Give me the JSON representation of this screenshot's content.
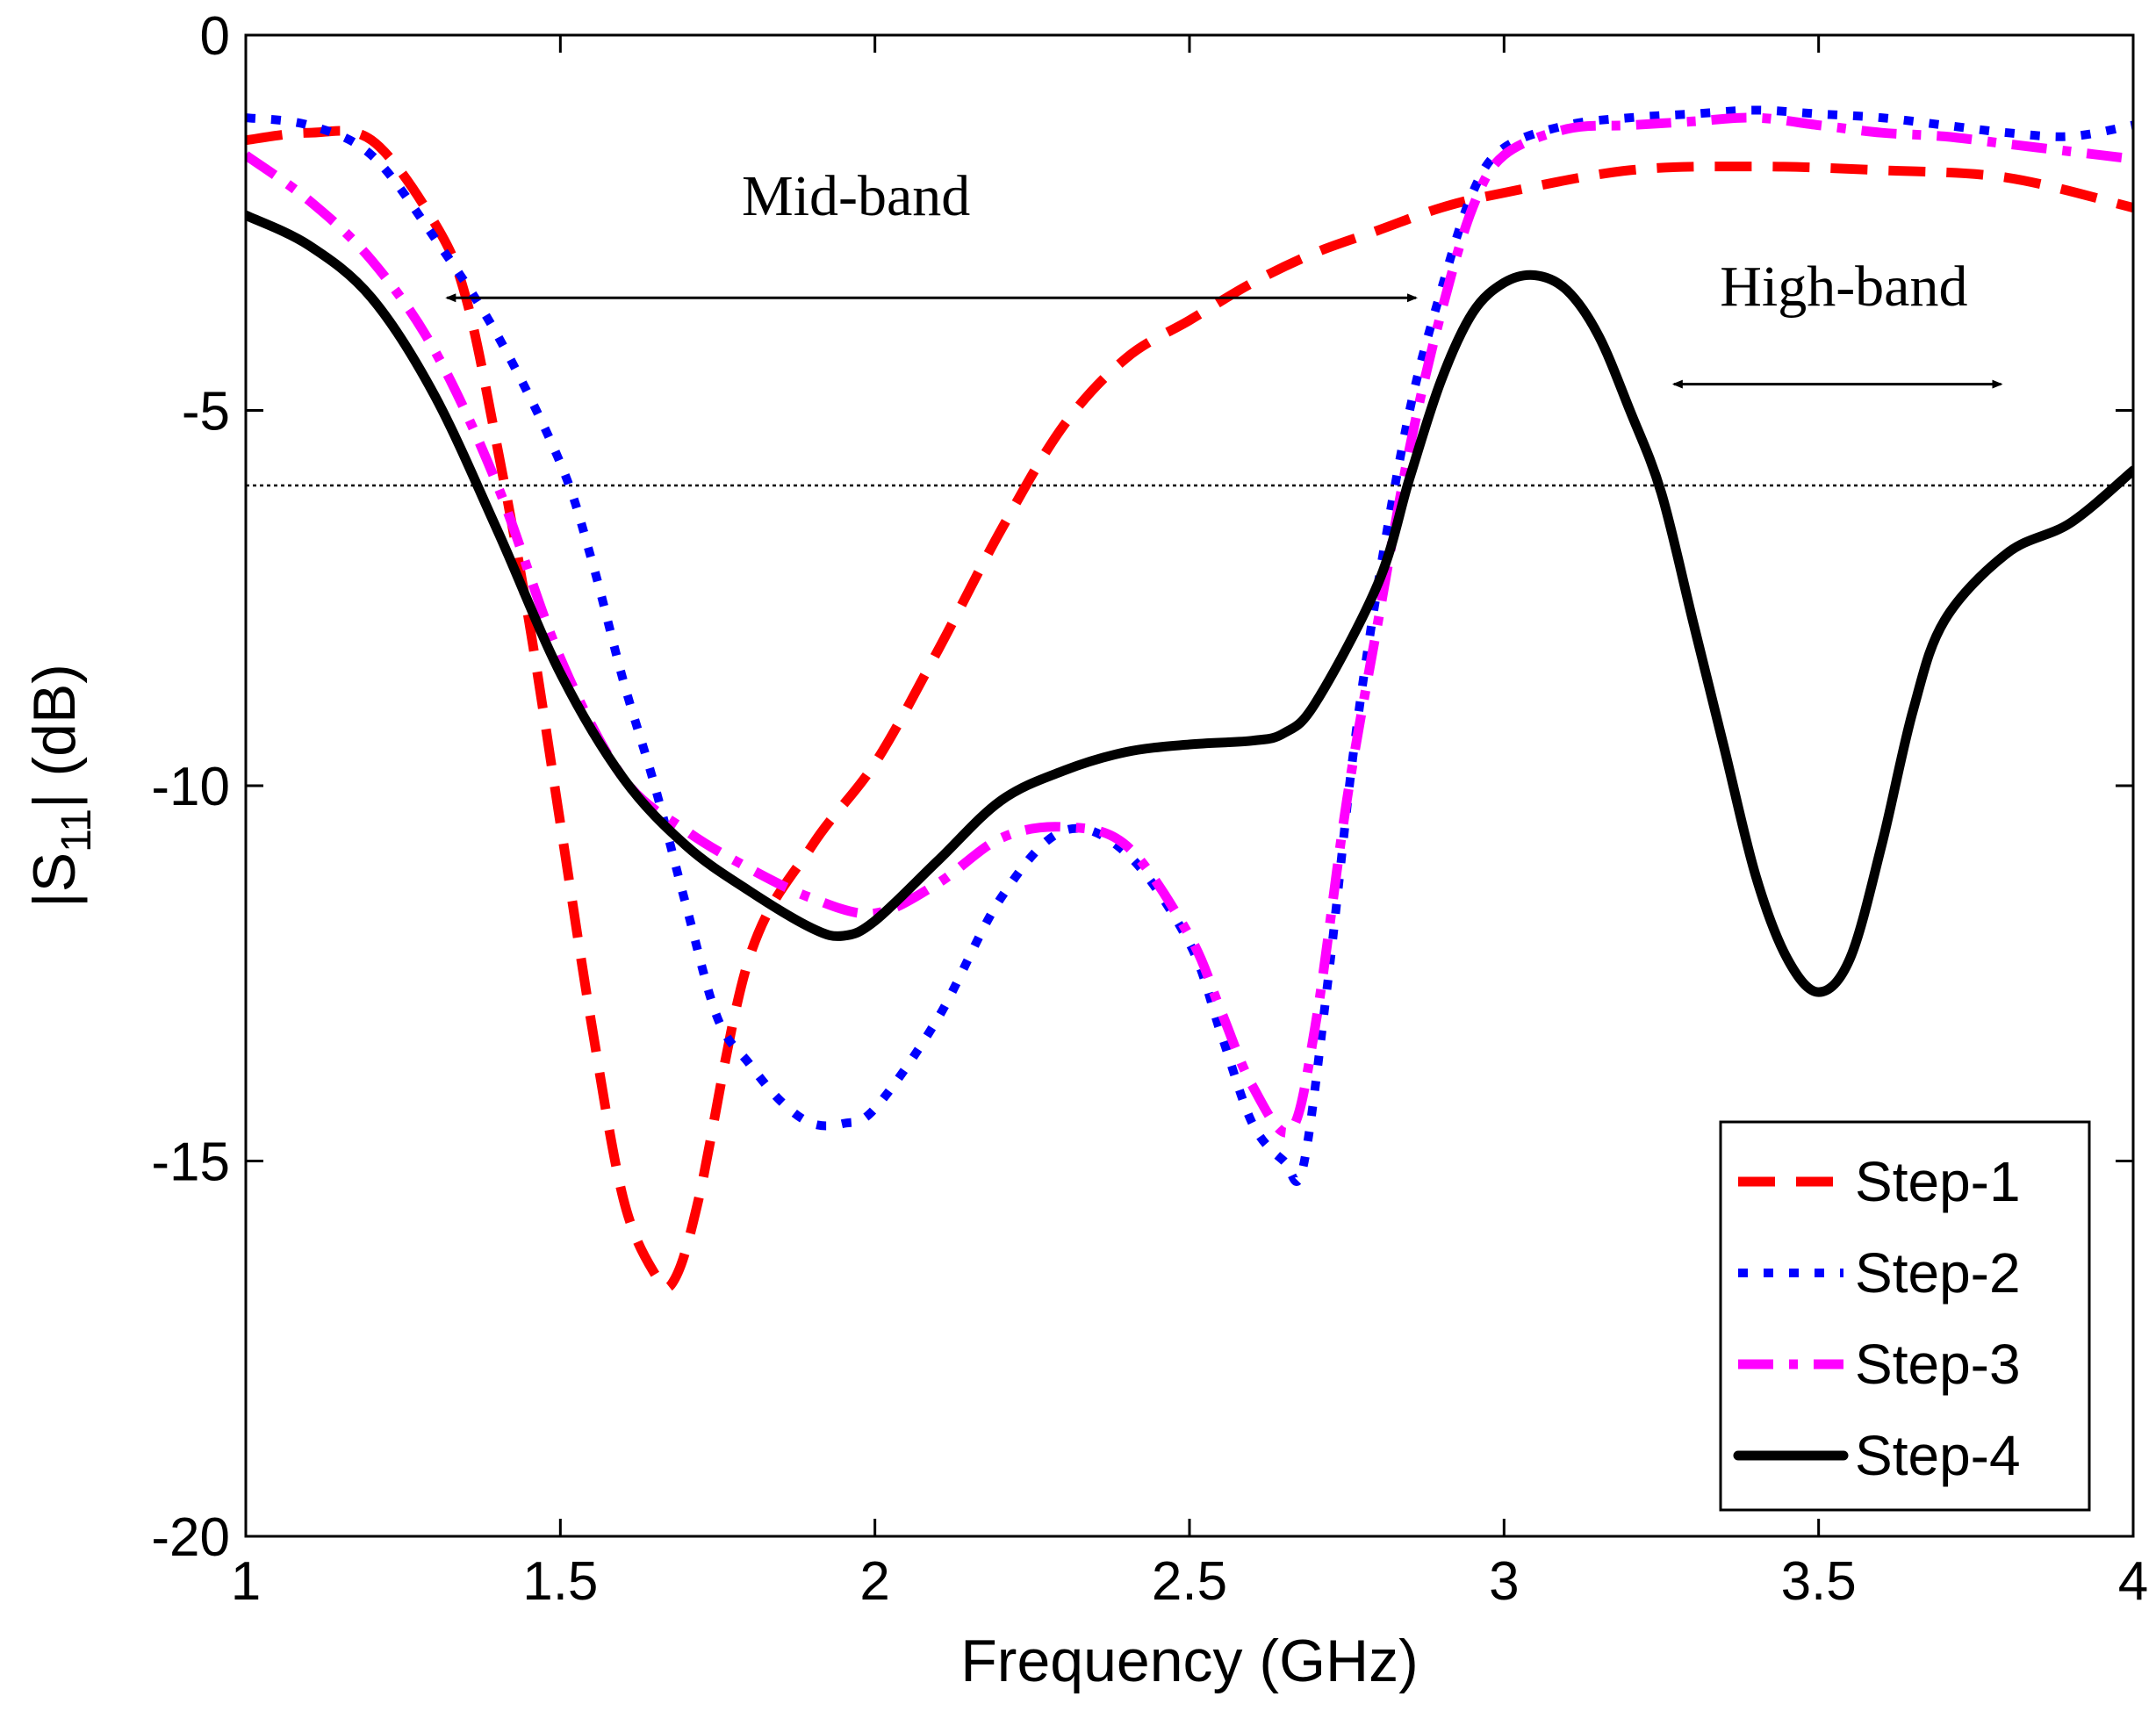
{
  "chart_data": {
    "type": "line",
    "xlabel": "Frequency (GHz)",
    "ylabel_main": "|S",
    "ylabel_sub": "11",
    "ylabel_tail": "| (dB)",
    "xlim": [
      1,
      4
    ],
    "ylim": [
      -20,
      0
    ],
    "xticks": [
      1,
      1.5,
      2,
      2.5,
      3,
      3.5,
      4
    ],
    "xtick_labels": [
      "1",
      "1.5",
      "2",
      "2.5",
      "3",
      "3.5",
      "4"
    ],
    "yticks": [
      0,
      -5,
      -10,
      -15,
      -20
    ],
    "ytick_labels": [
      "0",
      "-5",
      "-10",
      "-15",
      "-20"
    ],
    "reference_line": {
      "y": -6,
      "style": "dotted"
    },
    "annotations": [
      {
        "text": "Mid-band",
        "x_from": 1.32,
        "x_to": 2.86,
        "y": -3.5,
        "label_x": 1.97,
        "label_y": -2.4
      },
      {
        "text": "High-band",
        "x_from": 3.27,
        "x_to": 3.79,
        "y": -4.65,
        "label_x": 3.54,
        "label_y": -3.6
      }
    ],
    "series": [
      {
        "name": "Step-1",
        "color": "#ff0000",
        "style": "dashed",
        "x": [
          1.0,
          1.1,
          1.2,
          1.3,
          1.35,
          1.4,
          1.45,
          1.5,
          1.55,
          1.6,
          1.65,
          1.68,
          1.72,
          1.8,
          1.9,
          2.0,
          2.1,
          2.2,
          2.3,
          2.4,
          2.5,
          2.6,
          2.7,
          2.8,
          2.9,
          3.0,
          3.2,
          3.4,
          3.6,
          3.8,
          4.0
        ],
        "y": [
          -1.4,
          -1.3,
          -1.4,
          -2.5,
          -3.5,
          -5.5,
          -7.8,
          -10.5,
          -13.2,
          -15.5,
          -16.5,
          -16.6,
          -15.5,
          -12.3,
          -10.8,
          -9.7,
          -8.2,
          -6.6,
          -5.2,
          -4.3,
          -3.8,
          -3.3,
          -2.9,
          -2.6,
          -2.3,
          -2.1,
          -1.8,
          -1.75,
          -1.8,
          -1.9,
          -2.3
        ]
      },
      {
        "name": "Step-2",
        "color": "#0000ff",
        "style": "dotted",
        "x": [
          1.0,
          1.1,
          1.2,
          1.3,
          1.4,
          1.5,
          1.55,
          1.6,
          1.65,
          1.7,
          1.75,
          1.8,
          1.85,
          1.9,
          1.95,
          2.0,
          2.1,
          2.2,
          2.3,
          2.4,
          2.5,
          2.55,
          2.6,
          2.65,
          2.68,
          2.72,
          2.76,
          2.8,
          2.85,
          2.9,
          2.95,
          3.0,
          3.1,
          3.2,
          3.3,
          3.4,
          3.5,
          3.6,
          3.7,
          3.8,
          3.9,
          4.0
        ],
        "y": [
          -1.1,
          -1.2,
          -1.6,
          -2.7,
          -4.0,
          -5.7,
          -7.0,
          -8.6,
          -10.0,
          -11.6,
          -13.1,
          -13.7,
          -14.2,
          -14.5,
          -14.5,
          -14.3,
          -13.1,
          -11.5,
          -10.6,
          -10.9,
          -12.1,
          -13.3,
          -14.5,
          -15.0,
          -15.1,
          -12.6,
          -9.6,
          -7.3,
          -5.0,
          -3.4,
          -2.1,
          -1.5,
          -1.2,
          -1.1,
          -1.05,
          -1.0,
          -1.05,
          -1.1,
          -1.2,
          -1.3,
          -1.35,
          -1.2
        ]
      },
      {
        "name": "Step-3",
        "color": "#ff00ff",
        "style": "dashdot",
        "x": [
          1.0,
          1.1,
          1.2,
          1.3,
          1.4,
          1.5,
          1.6,
          1.7,
          1.8,
          1.9,
          2.0,
          2.1,
          2.2,
          2.3,
          2.4,
          2.5,
          2.55,
          2.6,
          2.66,
          2.7,
          2.75,
          2.8,
          2.85,
          2.9,
          2.95,
          3.0,
          3.1,
          3.2,
          3.3,
          3.4,
          3.5,
          3.6,
          3.7,
          3.8,
          3.9,
          4.0
        ],
        "y": [
          -1.6,
          -2.2,
          -3.0,
          -4.2,
          -6.0,
          -8.3,
          -9.9,
          -10.6,
          -11.1,
          -11.5,
          -11.7,
          -11.3,
          -10.7,
          -10.55,
          -10.8,
          -12.0,
          -13.0,
          -14.0,
          -14.6,
          -13.2,
          -10.2,
          -7.8,
          -5.5,
          -3.7,
          -2.3,
          -1.6,
          -1.25,
          -1.2,
          -1.15,
          -1.1,
          -1.2,
          -1.3,
          -1.35,
          -1.45,
          -1.55,
          -1.65
        ]
      },
      {
        "name": "Step-4",
        "color": "#000000",
        "style": "solid",
        "x": [
          1.0,
          1.1,
          1.2,
          1.3,
          1.4,
          1.5,
          1.6,
          1.7,
          1.8,
          1.9,
          1.95,
          2.0,
          2.1,
          2.2,
          2.3,
          2.4,
          2.5,
          2.6,
          2.65,
          2.7,
          2.8,
          2.85,
          2.9,
          2.95,
          3.0,
          3.05,
          3.1,
          3.15,
          3.2,
          3.25,
          3.3,
          3.35,
          3.4,
          3.45,
          3.5,
          3.55,
          3.6,
          3.65,
          3.7,
          3.8,
          3.9,
          4.0
        ],
        "y": [
          -2.4,
          -2.8,
          -3.5,
          -4.8,
          -6.6,
          -8.5,
          -9.9,
          -10.8,
          -11.4,
          -11.9,
          -12.0,
          -11.8,
          -11.0,
          -10.2,
          -9.8,
          -9.55,
          -9.45,
          -9.4,
          -9.3,
          -8.9,
          -7.3,
          -5.9,
          -4.6,
          -3.7,
          -3.3,
          -3.2,
          -3.4,
          -4.0,
          -5.0,
          -6.1,
          -7.8,
          -9.5,
          -11.2,
          -12.3,
          -12.75,
          -12.3,
          -10.8,
          -9.0,
          -7.8,
          -6.9,
          -6.5,
          -5.8
        ]
      }
    ],
    "legend": {
      "position": "bottom-right",
      "entries": [
        "Step-1",
        "Step-2",
        "Step-3",
        "Step-4"
      ]
    }
  }
}
